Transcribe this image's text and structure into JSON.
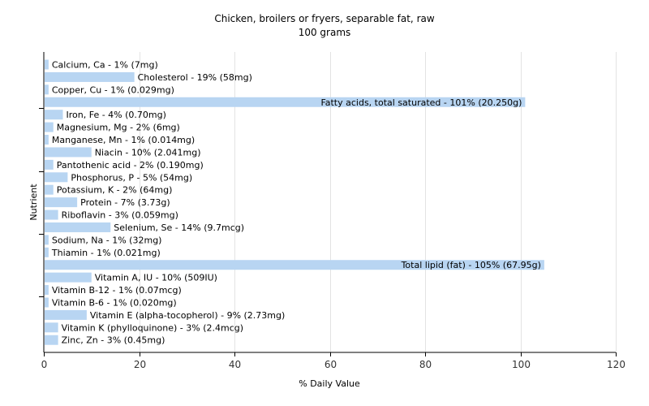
{
  "chart_data": {
    "type": "bar",
    "orientation": "horizontal",
    "title": "Chicken, broilers or fryers, separable fat, raw",
    "subtitle": "100 grams",
    "xlabel": "% Daily Value",
    "ylabel": "Nutrient",
    "xlim": [
      0,
      120
    ],
    "xticks": [
      0,
      20,
      40,
      60,
      80,
      100,
      120
    ],
    "grid": "vertical",
    "bar_color": "#b8d5f2",
    "categories": [
      "Calcium, Ca",
      "Cholesterol",
      "Copper, Cu",
      "Fatty acids, total saturated",
      "Iron, Fe",
      "Magnesium, Mg",
      "Manganese, Mn",
      "Niacin",
      "Pantothenic acid",
      "Phosphorus, P",
      "Potassium, K",
      "Protein",
      "Riboflavin",
      "Selenium, Se",
      "Sodium, Na",
      "Thiamin",
      "Total lipid (fat)",
      "Vitamin A, IU",
      "Vitamin B-12",
      "Vitamin B-6",
      "Vitamin E (alpha-tocopherol)",
      "Vitamin K (phylloquinone)",
      "Zinc, Zn"
    ],
    "values": [
      1,
      19,
      1,
      101,
      4,
      2,
      1,
      10,
      2,
      5,
      2,
      7,
      3,
      14,
      1,
      1,
      105,
      10,
      1,
      1,
      9,
      3,
      3
    ],
    "labels": [
      "Calcium, Ca - 1% (7mg)",
      "Cholesterol - 19% (58mg)",
      "Copper, Cu - 1% (0.029mg)",
      "Fatty acids, total saturated - 101% (20.250g)",
      "Iron, Fe - 4% (0.70mg)",
      "Magnesium, Mg - 2% (6mg)",
      "Manganese, Mn - 1% (0.014mg)",
      "Niacin - 10% (2.041mg)",
      "Pantothenic acid - 2% (0.190mg)",
      "Phosphorus, P - 5% (54mg)",
      "Potassium, K - 2% (64mg)",
      "Protein - 7% (3.73g)",
      "Riboflavin - 3% (0.059mg)",
      "Selenium, Se - 14% (9.7mcg)",
      "Sodium, Na - 1% (32mg)",
      "Thiamin - 1% (0.021mg)",
      "Total lipid (fat) - 105% (67.95g)",
      "Vitamin A, IU - 10% (509IU)",
      "Vitamin B-12 - 1% (0.07mcg)",
      "Vitamin B-6 - 1% (0.020mg)",
      "Vitamin E (alpha-tocopherol) - 9% (2.73mg)",
      "Vitamin K (phylloquinone) - 3% (2.4mcg)",
      "Zinc, Zn - 3% (0.45mg)"
    ]
  }
}
